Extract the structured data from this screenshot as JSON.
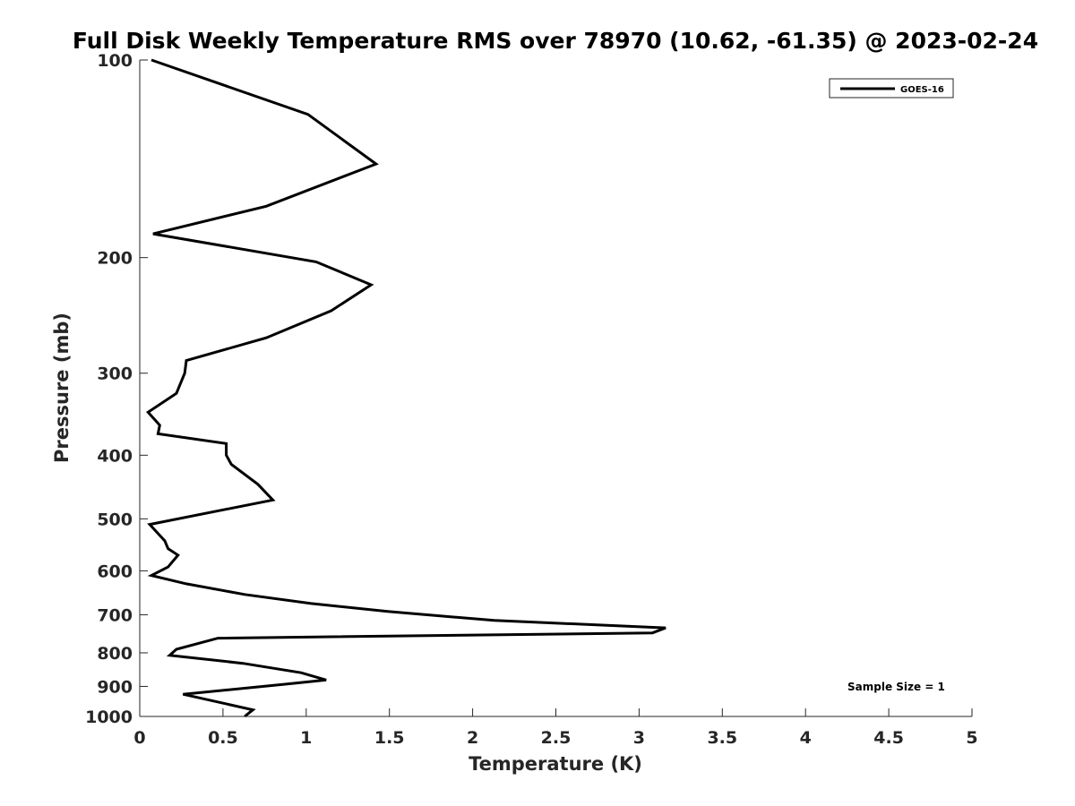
{
  "chart_data": {
    "type": "line",
    "title": "Full Disk Weekly Temperature RMS over 78970 (10.62, -61.35) @ 2023-02-24",
    "xlabel": "Temperature (K)",
    "ylabel": "Pressure (mb)",
    "xlim": [
      0,
      5
    ],
    "ylim": [
      100,
      1000
    ],
    "yscale": "log",
    "y_reversed": true,
    "xticks": [
      0,
      0.5,
      1,
      1.5,
      2,
      2.5,
      3,
      3.5,
      4,
      4.5,
      5
    ],
    "xtick_labels": [
      "0",
      "0.5",
      "1",
      "1.5",
      "2",
      "2.5",
      "3",
      "3.5",
      "4",
      "4.5",
      "5"
    ],
    "yticks": [
      100,
      200,
      300,
      400,
      500,
      600,
      700,
      800,
      900,
      1000
    ],
    "ytick_labels": [
      "100",
      "200",
      "300",
      "400",
      "500",
      "600",
      "700",
      "800",
      "900",
      "1000"
    ],
    "grid": false,
    "legend_position": "top-right",
    "annotation": "Sample Size = 1",
    "series": [
      {
        "name": "GOES-16",
        "color": "#000000",
        "x": [
          0.07,
          1.01,
          1.42,
          0.76,
          0.08,
          1.06,
          1.39,
          1.15,
          0.76,
          0.28,
          0.27,
          0.22,
          0.05,
          0.12,
          0.11,
          0.52,
          0.52,
          0.55,
          0.71,
          0.8,
          0.06,
          0.15,
          0.17,
          0.23,
          0.17,
          0.07,
          0.28,
          0.63,
          1.03,
          1.49,
          2.13,
          3.16,
          3.08,
          0.47,
          0.22,
          0.18,
          0.62,
          0.97,
          1.12,
          0.86,
          0.26,
          0.68,
          0.63
        ],
        "y": [
          100,
          121,
          144,
          167,
          184,
          203,
          220,
          241,
          265,
          287,
          300,
          322,
          344,
          360,
          371,
          384,
          400,
          413,
          443,
          468,
          510,
          540,
          555,
          568,
          592,
          610,
          628,
          652,
          673,
          692,
          714,
          733,
          746,
          760,
          790,
          807,
          830,
          858,
          880,
          894,
          925,
          977,
          1000
        ]
      }
    ]
  }
}
